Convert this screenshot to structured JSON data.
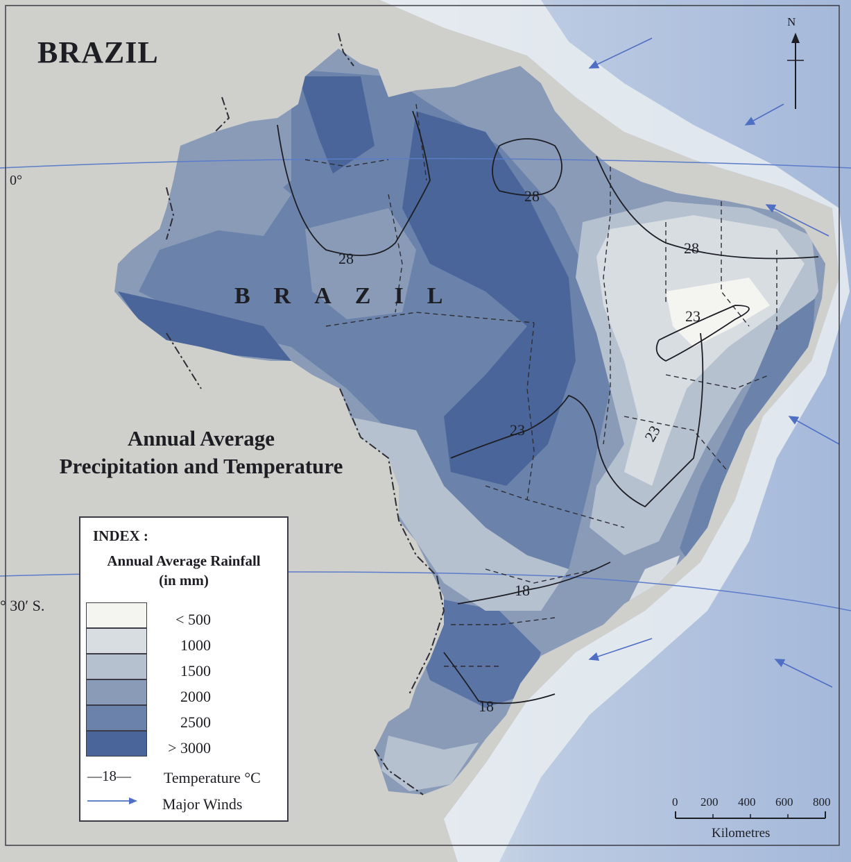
{
  "map": {
    "title": "BRAZIL",
    "subtitle_line1": "Annual Average",
    "subtitle_line2": "Precipitation and Temperature",
    "country_label": "BRAZIL",
    "latitudes": {
      "equator": "0°",
      "tropic": "° 30′ S."
    },
    "isotherm_labels": [
      "28",
      "28",
      "28",
      "23",
      "23",
      "23",
      "18",
      "18"
    ],
    "north_label": "N"
  },
  "legend": {
    "heading": "INDEX :",
    "rainfall_title_line1": "Annual Average Rainfall",
    "rainfall_title_line2": "(in mm)",
    "rainfall_classes": [
      {
        "label": "< 500",
        "color": "#f4f4f1"
      },
      {
        "label": "1000",
        "color": "#d8dde2"
      },
      {
        "label": "1500",
        "color": "#b6c1cf"
      },
      {
        "label": "2000",
        "color": "#8a9bb8"
      },
      {
        "label": "2500",
        "color": "#6b83aa"
      },
      {
        "label": "> 3000",
        "color": "#4a6599"
      }
    ],
    "temperature_sample": "—18—",
    "temperature_label": "Temperature °C",
    "winds_label": "Major Winds"
  },
  "scale": {
    "ticks": [
      "0",
      "200",
      "400",
      "600",
      "800"
    ],
    "unit": "Kilometres"
  },
  "colors": {
    "land_background": "#cfcfcc",
    "ocean_light": "#e6ebf0",
    "ocean_mid": "#c7d3e5",
    "ocean_deep": "#a9bcdc",
    "wind_arrow": "#4f6fc4"
  }
}
